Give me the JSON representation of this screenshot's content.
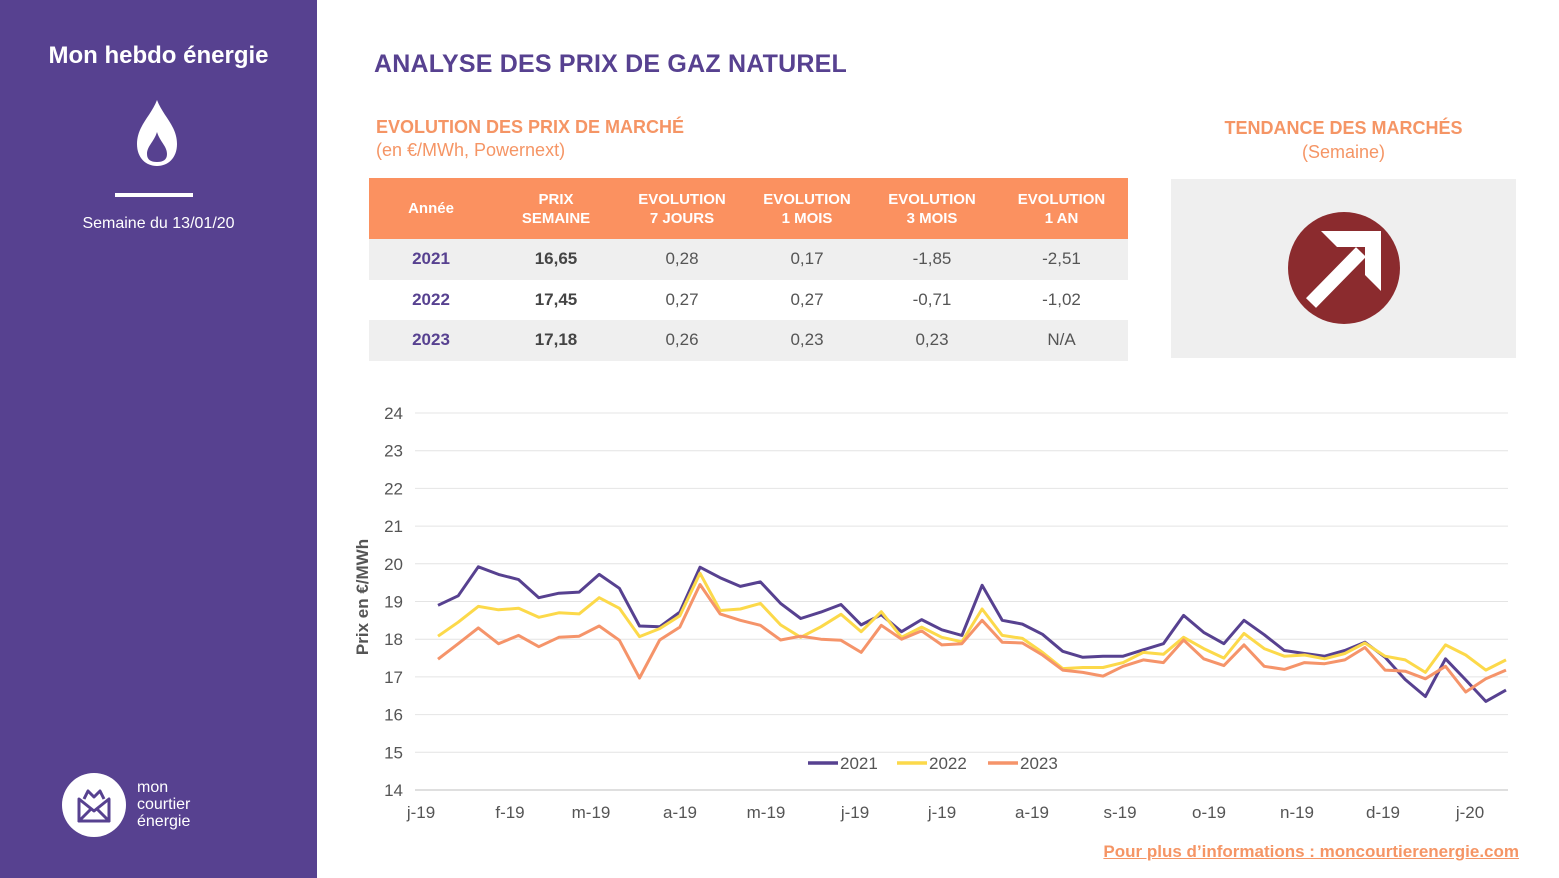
{
  "sidebar": {
    "title": "Mon hebdo énergie",
    "week": "Semaine du 13/01/20",
    "logo_lines": [
      "mon",
      "courtier",
      "énergie"
    ]
  },
  "main": {
    "title": "ANALYSE DES PRIX DE GAZ NATUREL",
    "subtitle": "EVOLUTION DES PRIX DE MARCHÉ",
    "subnote": "(en €/MWh, Powernext)",
    "trend_title": "TENDANCE DES MARCHÉS",
    "trend_note": "(Semaine)",
    "footer": "Pour plus d’informations : moncourtierenergie.com"
  },
  "colors": {
    "purple": "#574190",
    "orange": "#fb9160",
    "trend_icon": "#8b2b2e",
    "s2021": "#574190",
    "s2022": "#fcd94a",
    "s2023": "#f5946a"
  },
  "table": {
    "headers": [
      [
        "Année"
      ],
      [
        "PRIX",
        "SEMAINE"
      ],
      [
        "EVOLUTION",
        "7 JOURS"
      ],
      [
        "EVOLUTION",
        "1 MOIS"
      ],
      [
        "EVOLUTION",
        "3 MOIS"
      ],
      [
        "EVOLUTION",
        "1 AN"
      ]
    ],
    "rows": [
      [
        "2021",
        "16,65",
        "0,28",
        "0,17",
        "-1,85",
        "-2,51"
      ],
      [
        "2022",
        "17,45",
        "0,27",
        "0,27",
        "-0,71",
        "-1,02"
      ],
      [
        "2023",
        "17,18",
        "0,26",
        "0,23",
        "0,23",
        "N/A"
      ]
    ]
  },
  "chart_data": {
    "type": "line",
    "ylabel": "Prix en €/MWh",
    "ylim": [
      14,
      24
    ],
    "yticks": [
      14,
      15,
      16,
      17,
      18,
      19,
      20,
      21,
      22,
      23,
      24
    ],
    "x_tick_labels": [
      "j-19",
      "f-19",
      "m-19",
      "a-19",
      "m-19",
      "j-19",
      "j-19",
      "a-19",
      "s-19",
      "o-19",
      "n-19",
      "d-19",
      "j-20"
    ],
    "legend_position": "bottom",
    "grid": true,
    "series": [
      {
        "name": "2021",
        "values": [
          18.9,
          19.15,
          19.92,
          19.72,
          19.58,
          19.1,
          19.22,
          19.25,
          19.72,
          19.35,
          18.35,
          18.33,
          18.72,
          19.91,
          19.63,
          19.4,
          19.52,
          18.95,
          18.55,
          18.72,
          18.92,
          18.38,
          18.65,
          18.2,
          18.52,
          18.25,
          18.1,
          19.43,
          18.5,
          18.4,
          18.13,
          17.68,
          17.52,
          17.55,
          17.55,
          17.72,
          17.88,
          18.63,
          18.18,
          17.88,
          18.5,
          18.12,
          17.7,
          17.62,
          17.55,
          17.7,
          17.92,
          17.52,
          16.93,
          16.48,
          17.48,
          16.92,
          16.35,
          16.65
        ]
      },
      {
        "name": "2022",
        "values": [
          18.08,
          18.45,
          18.87,
          18.78,
          18.82,
          18.58,
          18.7,
          18.67,
          19.1,
          18.82,
          18.07,
          18.28,
          18.62,
          19.75,
          18.76,
          18.8,
          18.95,
          18.38,
          18.05,
          18.33,
          18.66,
          18.2,
          18.73,
          18.05,
          18.32,
          18.05,
          17.93,
          18.8,
          18.1,
          18.02,
          17.65,
          17.22,
          17.25,
          17.25,
          17.38,
          17.65,
          17.6,
          18.05,
          17.75,
          17.5,
          18.15,
          17.75,
          17.55,
          17.58,
          17.48,
          17.62,
          17.9,
          17.55,
          17.45,
          17.12,
          17.85,
          17.58,
          17.18,
          17.45
        ]
      },
      {
        "name": "2023",
        "values": [
          17.47,
          17.88,
          18.3,
          17.88,
          18.1,
          17.8,
          18.05,
          18.08,
          18.35,
          17.97,
          16.97,
          17.98,
          18.32,
          19.45,
          18.67,
          18.5,
          18.37,
          17.98,
          18.08,
          18.0,
          17.97,
          17.65,
          18.37,
          18.0,
          18.22,
          17.85,
          17.88,
          18.5,
          17.92,
          17.9,
          17.58,
          17.18,
          17.12,
          17.02,
          17.28,
          17.45,
          17.38,
          17.98,
          17.48,
          17.3,
          17.85,
          17.28,
          17.2,
          17.38,
          17.35,
          17.45,
          17.78,
          17.18,
          17.15,
          16.95,
          17.28,
          16.6,
          16.95,
          17.18
        ]
      }
    ]
  }
}
